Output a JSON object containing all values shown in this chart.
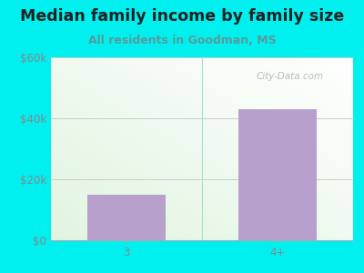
{
  "title": "Median family income by family size",
  "subtitle": "All residents in Goodman, MS",
  "categories": [
    "3",
    "4+"
  ],
  "values": [
    15000,
    43000
  ],
  "bar_color": "#b8a0cc",
  "outer_bg": "#00f0f0",
  "title_color": "#222222",
  "subtitle_color": "#5a9a9a",
  "tick_color": "#888888",
  "grid_color": "#cccccc",
  "ylim": [
    0,
    60000
  ],
  "yticks": [
    0,
    20000,
    40000,
    60000
  ],
  "ytick_labels": [
    "$0",
    "$20k",
    "$40k",
    "$60k"
  ],
  "title_fontsize": 12.5,
  "subtitle_fontsize": 9,
  "tick_fontsize": 8.5,
  "watermark": "City-Data.com",
  "plot_bg_colors": [
    "#e8f5ea",
    "#f8fffa"
  ]
}
